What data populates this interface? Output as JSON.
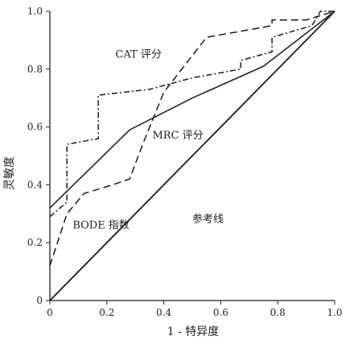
{
  "chart_data": {
    "type": "line",
    "title": "",
    "xlabel": "1 - 特异度",
    "ylabel": "灵敏度",
    "xlim": [
      0,
      1
    ],
    "ylim": [
      0,
      1
    ],
    "x_ticks": [
      "0",
      "0.2",
      "0.4",
      "0.6",
      "0.8",
      "1.0"
    ],
    "y_ticks": [
      "0",
      "0.2",
      "0.4",
      "0.6",
      "0.8",
      "1.0"
    ],
    "grid": false,
    "series": [
      {
        "name": "CAT 评分",
        "style": "dash-dot",
        "points": [
          [
            0,
            0.29
          ],
          [
            0.06,
            0.34
          ],
          [
            0.06,
            0.54
          ],
          [
            0.17,
            0.56
          ],
          [
            0.17,
            0.71
          ],
          [
            0.35,
            0.73
          ],
          [
            0.5,
            0.77
          ],
          [
            0.67,
            0.8
          ],
          [
            0.67,
            0.83
          ],
          [
            0.78,
            0.86
          ],
          [
            0.78,
            0.91
          ],
          [
            0.92,
            0.95
          ],
          [
            0.95,
            1.0
          ],
          [
            1.0,
            1.0
          ]
        ]
      },
      {
        "name": "MRC 评分",
        "style": "solid",
        "points": [
          [
            0,
            0.32
          ],
          [
            0.28,
            0.59
          ],
          [
            0.5,
            0.7
          ],
          [
            0.75,
            0.81
          ],
          [
            1.0,
            1.0
          ]
        ]
      },
      {
        "name": "BODE 指数",
        "style": "dashed",
        "points": [
          [
            0,
            0.12
          ],
          [
            0.06,
            0.3
          ],
          [
            0.12,
            0.37
          ],
          [
            0.22,
            0.4
          ],
          [
            0.28,
            0.42
          ],
          [
            0.33,
            0.55
          ],
          [
            0.4,
            0.72
          ],
          [
            0.55,
            0.91
          ],
          [
            0.78,
            0.95
          ],
          [
            0.78,
            0.97
          ],
          [
            0.9,
            0.97
          ],
          [
            1.0,
            1.0
          ]
        ]
      },
      {
        "name": "参考线",
        "style": "solid",
        "points": [
          [
            0,
            0
          ],
          [
            1,
            1
          ]
        ]
      }
    ],
    "series_labels": [
      {
        "text": "CAT 评分",
        "at": [
          0.23,
          0.84
        ]
      },
      {
        "text": "MRC 评分",
        "at": [
          0.36,
          0.56
        ]
      },
      {
        "text": "BODE 指数",
        "at": [
          0.08,
          0.25
        ]
      },
      {
        "text": "参考线",
        "at": [
          0.5,
          0.27
        ]
      }
    ]
  }
}
